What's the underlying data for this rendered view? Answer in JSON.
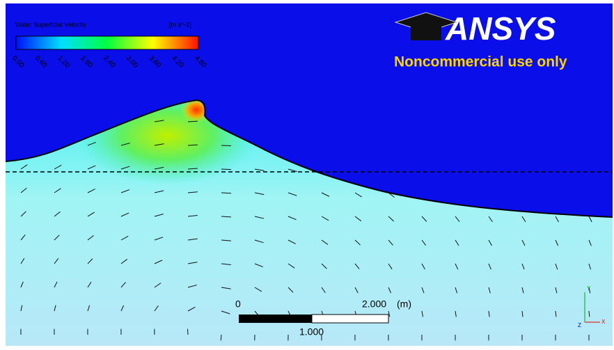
{
  "legend": {
    "title": "Water Superficial Velocity",
    "unit": "[m s^-1]",
    "ticks": [
      "0.00",
      "0.60",
      "1.20",
      "1.80",
      "2.40",
      "3.00",
      "3.60",
      "4.20",
      "4.80"
    ]
  },
  "logo": {
    "brand": "ANSYS",
    "note": "Noncommercial use only"
  },
  "scale_bar": {
    "start": "0",
    "end": "2.000",
    "unit": "(m)",
    "middle": "1.000"
  },
  "axes": {
    "y": "Y",
    "x": "X",
    "z": "Z"
  }
}
